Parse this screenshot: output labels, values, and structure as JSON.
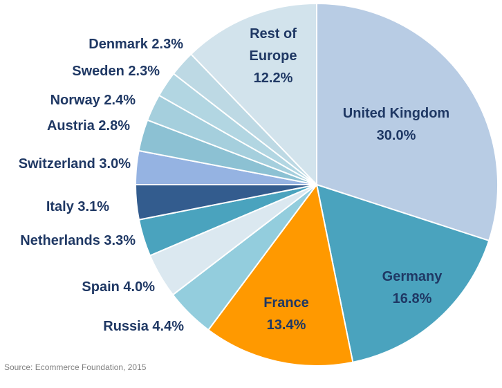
{
  "chart_data": {
    "type": "pie",
    "slices": [
      {
        "label": "United Kingdom",
        "value": 30.0,
        "display": "30.0%",
        "color": "#b8cce4"
      },
      {
        "label": "Germany",
        "value": 16.8,
        "display": "16.8%",
        "color": "#4aa3be"
      },
      {
        "label": "France",
        "value": 13.4,
        "display": "13.4%",
        "color": "#ff9900"
      },
      {
        "label": "Russia",
        "value": 4.4,
        "display": "4.4%",
        "color": "#93cddd"
      },
      {
        "label": "Spain",
        "value": 4.0,
        "display": "4.0%",
        "color": "#dbe8f0"
      },
      {
        "label": "Netherlands",
        "value": 3.3,
        "display": "3.3%",
        "color": "#4aa3be"
      },
      {
        "label": "Italy",
        "value": 3.1,
        "display": "3.1%",
        "color": "#335c8e"
      },
      {
        "label": "Switzerland",
        "value": 3.0,
        "display": "3.0%",
        "color": "#95b3e2"
      },
      {
        "label": "Austria",
        "value": 2.8,
        "display": "2.8%",
        "color": "#8cc1d3"
      },
      {
        "label": "Norway",
        "value": 2.4,
        "display": "2.4%",
        "color": "#a5cfdd"
      },
      {
        "label": "Sweden",
        "value": 2.3,
        "display": "2.3%",
        "color": "#b2d6e2"
      },
      {
        "label": "Denmark",
        "value": 2.3,
        "display": "2.3%",
        "color": "#bdd9e4"
      },
      {
        "label": "Rest of Europe",
        "value": 12.2,
        "display": "12.2%",
        "color": "#d2e3ec"
      }
    ],
    "start": "12 o'clock",
    "direction": "clockwise",
    "label_color": "#1f3864"
  },
  "source": "Source: Ecommerce Foundation, 2015"
}
